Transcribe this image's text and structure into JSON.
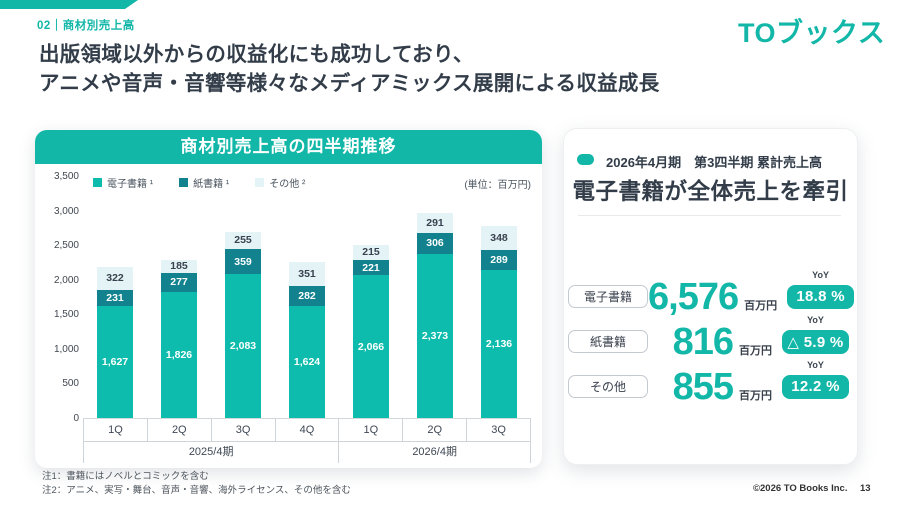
{
  "theme": {
    "accent": "#12b7a8",
    "accent_dark": "#11828e",
    "accent_pale": "#e4f3f6",
    "text_dark": "#323d49"
  },
  "page": {
    "eyebrow": "02｜商材別売上高",
    "logo": "TOブックス",
    "title_line1": "出版領域以外からの収益化にも成功しており、",
    "title_line2": "アニメや音声・音響等様々なメディアミックス展開による収益成長",
    "footnote1": "注1：書籍にはノベルとコミックを含む",
    "footnote2": "注2：アニメ、実写・舞台、音声・音響、海外ライセンス、その他を含む",
    "copyright": "©2026 TO Books Inc.",
    "page_number": "13"
  },
  "chart_panel": {
    "title": "商材別売上高の四半期推移",
    "unit_label": "(単位：百万円)"
  },
  "chart_data": {
    "type": "bar",
    "stacked": true,
    "title": "商材別売上高の四半期推移",
    "categories": [
      "1Q",
      "2Q",
      "3Q",
      "4Q",
      "1Q",
      "2Q",
      "3Q"
    ],
    "groups": [
      {
        "label": "2025/4期",
        "span": 4
      },
      {
        "label": "2026/4期",
        "span": 3
      }
    ],
    "series": [
      {
        "name": "電子書籍 ¹",
        "color": "#0ebcae",
        "values": [
          1627,
          1826,
          2083,
          1624,
          2066,
          2373,
          2136
        ]
      },
      {
        "name": "紙書籍 ¹",
        "color": "#11828e",
        "values": [
          231,
          277,
          359,
          282,
          221,
          306,
          289
        ]
      },
      {
        "name": "その他 ²",
        "color": "#e4f3f6",
        "values": [
          322,
          185,
          255,
          351,
          215,
          291,
          348
        ]
      }
    ],
    "ylabel": "(単位：百万円)",
    "ylim": [
      0,
      3500
    ],
    "ytick_step": 500,
    "grid": false,
    "legend_position": "top"
  },
  "summary_panel": {
    "period_label": "2026年4月期　第3四半期 累計売上高",
    "headline": "電子書籍が全体売上を牽引",
    "yoy_caption": "YoY",
    "rows": [
      {
        "label": "電子書籍",
        "value": "6,576",
        "unit": "百万円",
        "yoy": "18.8 %"
      },
      {
        "label": "紙書籍",
        "value": "816",
        "unit": "百万円",
        "yoy": "△ 5.9 %"
      },
      {
        "label": "その他",
        "value": "855",
        "unit": "百万円",
        "yoy": "12.2 %"
      }
    ]
  }
}
